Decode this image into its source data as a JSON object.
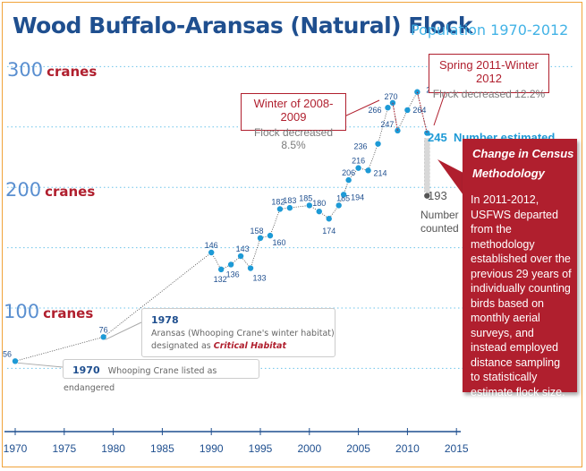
{
  "title": "Wood Buffalo-Aransas (Natural) Flock",
  "subtitle": "Population 1970-2012",
  "y_labels": [
    {
      "value": "300",
      "unit": "cranes"
    },
    {
      "value": "200",
      "unit": "cranes"
    },
    {
      "value": "100",
      "unit": "cranes"
    }
  ],
  "callouts": {
    "winter": {
      "heading": "Winter of 2008-2009",
      "sub": "Flock decreased 8.5%"
    },
    "spring": {
      "heading": "Spring 2011-Winter 2012",
      "sub": "Flock decreased 12.2%"
    }
  },
  "estimate": {
    "value": "245",
    "label": "Number estimated"
  },
  "counted": {
    "value": "193",
    "label_line1": "Number",
    "label_line2": "counted"
  },
  "methodology": {
    "heading_line1": "Change in Census",
    "heading_line2": "Methodology",
    "body": "In 2011-2012, USFWS departed from the methodology established over the previous 29 years of individually counting birds based on monthly aerial surveys, and instead employed distance sampling to statistically estimate flock size."
  },
  "notes": {
    "n1978": {
      "year": "1978",
      "line1": "Aransas (Whooping Crane's winter habitat)",
      "line2_pre": "designated as",
      "line2_em": "Critical Habitat"
    },
    "n1970": {
      "year": "1970",
      "text": "Whooping Crane listed as endangered"
    }
  },
  "colors": {
    "accent": "#1d9ad6",
    "title": "#1f4f8f",
    "red": "#b01f2e",
    "frame": "#f1a33a"
  },
  "chart_data": {
    "type": "line",
    "title": "Wood Buffalo-Aransas (Natural) Flock",
    "subtitle": "Population 1970-2012",
    "xlim": [
      1969,
      2015
    ],
    "ylim": [
      0,
      320
    ],
    "x_ticks": [
      1970,
      1975,
      1980,
      1985,
      1990,
      1995,
      2000,
      2005,
      2010,
      2015
    ],
    "y_ticks": [
      100,
      200,
      300
    ],
    "grid": true,
    "series": [
      {
        "points": [
          {
            "x": 1970,
            "y": 56
          },
          {
            "x": 1979,
            "y": 76
          },
          {
            "x": 1990,
            "y": 146
          },
          {
            "x": 1991,
            "y": 132
          },
          {
            "x": 1992,
            "y": 136
          },
          {
            "x": 1993,
            "y": 143
          },
          {
            "x": 1994,
            "y": 133
          },
          {
            "x": 1995,
            "y": 158
          },
          {
            "x": 1996,
            "y": 160
          },
          {
            "x": 1997,
            "y": 182
          },
          {
            "x": 1998,
            "y": 183
          },
          {
            "x": 2000,
            "y": 185
          },
          {
            "x": 2001,
            "y": 180
          },
          {
            "x": 2002,
            "y": 174
          },
          {
            "x": 2003,
            "y": 185
          },
          {
            "x": 2003.5,
            "y": 194
          },
          {
            "x": 2004,
            "y": 206
          },
          {
            "x": 2005,
            "y": 216
          },
          {
            "x": 2006,
            "y": 214
          },
          {
            "x": 2007,
            "y": 236
          },
          {
            "x": 2008,
            "y": 266
          },
          {
            "x": 2008.5,
            "y": 270
          },
          {
            "x": 2009,
            "y": 247
          },
          {
            "x": 2010,
            "y": 264
          },
          {
            "x": 2011,
            "y": 279
          },
          {
            "x": 2012,
            "y": 245
          }
        ]
      }
    ],
    "counted_2012": {
      "x": 2012,
      "y": 193
    }
  }
}
